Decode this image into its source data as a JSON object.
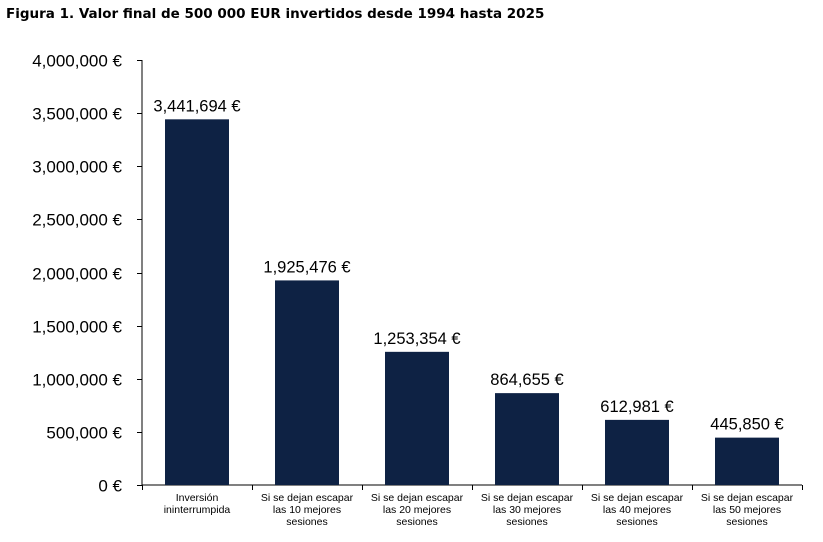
{
  "chart_data": {
    "type": "bar",
    "title": "Figura 1. Valor final de 500 000 EUR invertidos desde 1994 hasta 2025",
    "categories": [
      [
        "Inversión",
        "ininterrumpida"
      ],
      [
        "Si se dejan escapar",
        "las 10 mejores",
        "sesiones"
      ],
      [
        "Si se dejan escapar",
        "las 20 mejores",
        "sesiones"
      ],
      [
        "Si se dejan escapar",
        "las 30 mejores",
        "sesiones"
      ],
      [
        "Si se dejan escapar",
        "las 40 mejores",
        "sesiones"
      ],
      [
        "Si se dejan escapar",
        "las 50 mejores",
        "sesiones"
      ]
    ],
    "values": [
      3441694,
      1925476,
      1253354,
      864655,
      612981,
      445850
    ],
    "data_labels": [
      "3,441,694 €",
      "1,925,476 €",
      "1,253,354 €",
      "864,655 €",
      "612,981 €",
      "445,850 €"
    ],
    "yticks": [
      0,
      500000,
      1000000,
      1500000,
      2000000,
      2500000,
      3000000,
      3500000,
      4000000
    ],
    "ytick_labels": [
      "0 €",
      "500,000 €",
      "1,000,000 €",
      "1,500,000 €",
      "2,000,000 €",
      "2,500,000 €",
      "3,000,000 €",
      "3,500,000 €",
      "4,000,000 €"
    ],
    "ylim": [
      0,
      4000000
    ],
    "xlabel": "",
    "ylabel": "",
    "grid": false,
    "bar_color": "#0e2244",
    "axis_color": "#000000"
  }
}
